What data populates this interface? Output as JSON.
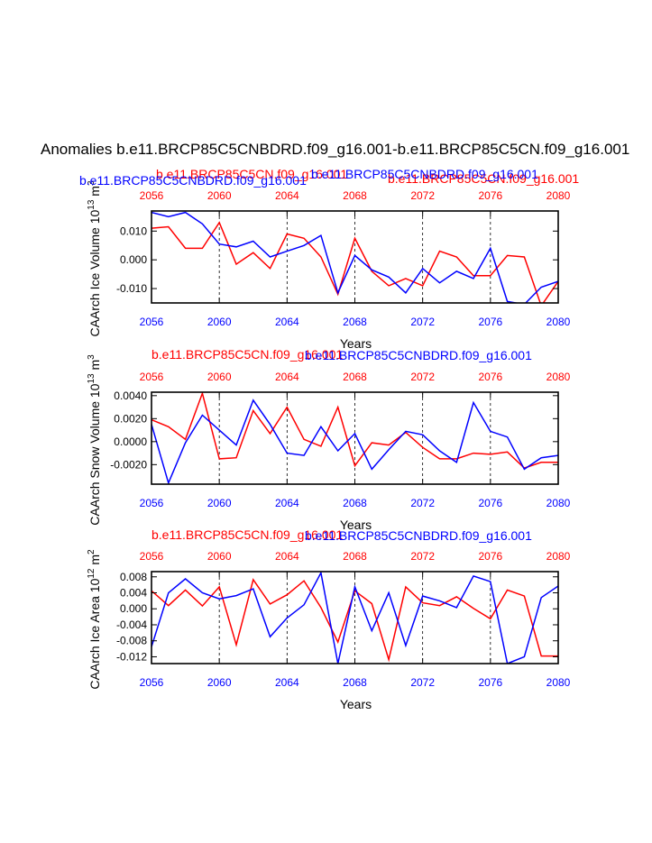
{
  "title": "Anomalies b.e11.BRCP85C5CNBDRD.f09_g16.001-b.e11.BRCP85C5CN.f09_g16.001",
  "colors": {
    "red": "#ff0000",
    "blue": "#0000ff",
    "axis": "#000000"
  },
  "chart_data": [
    {
      "type": "line",
      "ylabel": "CAArch Ice Volume 10",
      "ylabel_exp": "13",
      "ylabel_unit": " m",
      "ylabel_unit_exp": "3",
      "xlabel": "Years",
      "xlim": [
        2056,
        2080
      ],
      "ylim": [
        -0.015,
        0.017
      ],
      "yticks": [
        -0.01,
        0.0,
        0.01
      ],
      "ytick_labels": [
        "-0.010",
        "0.000",
        "0.010"
      ],
      "xticks": [
        2056,
        2060,
        2064,
        2068,
        2072,
        2076,
        2080
      ],
      "xtick_labels": [
        "2056",
        "2060",
        "2064",
        "2068",
        "2072",
        "2076",
        "2080"
      ],
      "series": [
        {
          "name": "b.e11.BRCP85C5CN.f09_g16.001",
          "color": "#ff0000",
          "x": [
            2056,
            2057,
            2058,
            2059,
            2060,
            2061,
            2062,
            2063,
            2064,
            2065,
            2066,
            2067,
            2068,
            2069,
            2070,
            2071,
            2072,
            2073,
            2074,
            2075,
            2076,
            2077,
            2078,
            2079,
            2080
          ],
          "values": [
            0.011,
            0.0115,
            0.004,
            0.004,
            0.013,
            -0.0015,
            0.0025,
            -0.003,
            0.009,
            0.0075,
            0.001,
            -0.012,
            0.0075,
            -0.004,
            -0.009,
            -0.0065,
            -0.009,
            0.003,
            0.001,
            -0.0055,
            -0.0055,
            0.0015,
            0.001,
            -0.016,
            -0.0075
          ]
        },
        {
          "name": "b.e11.BRCP85C5CNBDRD.f09_g16.001",
          "color": "#0000ff",
          "x": [
            2056,
            2057,
            2058,
            2059,
            2060,
            2061,
            2062,
            2063,
            2064,
            2065,
            2066,
            2067,
            2068,
            2069,
            2070,
            2071,
            2072,
            2073,
            2074,
            2075,
            2076,
            2077,
            2078,
            2079,
            2080
          ],
          "values": [
            0.0165,
            0.015,
            0.0165,
            0.0125,
            0.0055,
            0.0045,
            0.0065,
            0.001,
            0.003,
            0.005,
            0.0085,
            -0.0115,
            0.0015,
            -0.0035,
            -0.006,
            -0.0115,
            -0.003,
            -0.008,
            -0.004,
            -0.0065,
            0.004,
            -0.0145,
            -0.0155,
            -0.0095,
            -0.0075
          ]
        }
      ]
    },
    {
      "type": "line",
      "ylabel": "CAArch Snow Volume 10",
      "ylabel_exp": "13",
      "ylabel_unit": " m",
      "ylabel_unit_exp": "3",
      "xlabel": "Years",
      "xlim": [
        2056,
        2080
      ],
      "ylim": [
        -0.0037,
        0.0043
      ],
      "yticks": [
        -0.002,
        0.0,
        0.002,
        0.004
      ],
      "ytick_labels": [
        "-0.0020",
        "0.0000",
        "0.0020",
        "0.0040"
      ],
      "xticks": [
        2056,
        2060,
        2064,
        2068,
        2072,
        2076,
        2080
      ],
      "xtick_labels": [
        "2056",
        "2060",
        "2064",
        "2068",
        "2072",
        "2076",
        "2080"
      ],
      "series": [
        {
          "name": "b.e11.BRCP85C5CN.f09_g16.001",
          "color": "#ff0000",
          "x": [
            2056,
            2057,
            2058,
            2059,
            2060,
            2061,
            2062,
            2063,
            2064,
            2065,
            2066,
            2067,
            2068,
            2069,
            2070,
            2071,
            2072,
            2073,
            2074,
            2075,
            2076,
            2077,
            2078,
            2079,
            2080
          ],
          "values": [
            0.0019,
            0.0013,
            0.0002,
            0.0042,
            -0.0015,
            -0.0014,
            0.0027,
            0.0007,
            0.003,
            0.0002,
            -0.0004,
            0.003,
            -0.0021,
            -0.0001,
            -0.0003,
            0.0008,
            -0.0005,
            -0.0015,
            -0.0015,
            -0.001,
            -0.0011,
            -0.0009,
            -0.0023,
            -0.0018,
            -0.0018
          ]
        },
        {
          "name": "b.e11.BRCP85C5CNBDRD.f09_g16.001",
          "color": "#0000ff",
          "x": [
            2056,
            2057,
            2058,
            2059,
            2060,
            2061,
            2062,
            2063,
            2064,
            2065,
            2066,
            2067,
            2068,
            2069,
            2070,
            2071,
            2072,
            2073,
            2074,
            2075,
            2076,
            2077,
            2078,
            2079,
            2080
          ],
          "values": [
            0.0015,
            -0.0036,
            -0.0001,
            0.0023,
            0.001,
            -0.0003,
            0.0036,
            0.0015,
            -0.001,
            -0.0012,
            0.0013,
            -0.0008,
            0.0007,
            -0.0024,
            -0.0007,
            0.0009,
            0.0006,
            -0.0008,
            -0.0018,
            0.0034,
            0.0009,
            0.0004,
            -0.0024,
            -0.0014,
            -0.0012
          ]
        }
      ]
    },
    {
      "type": "line",
      "ylabel": "CAArch Ice Area 10",
      "ylabel_exp": "12",
      "ylabel_unit": " m",
      "ylabel_unit_exp": "2",
      "xlabel": "Years",
      "xlim": [
        2056,
        2080
      ],
      "ylim": [
        -0.0137,
        0.0093
      ],
      "yticks": [
        -0.012,
        -0.008,
        -0.004,
        0.0,
        0.004,
        0.008
      ],
      "ytick_labels": [
        "-0.012",
        "-0.008",
        "-0.004",
        "0.000",
        "0.004",
        "0.008"
      ],
      "xticks": [
        2056,
        2060,
        2064,
        2068,
        2072,
        2076,
        2080
      ],
      "xtick_labels": [
        "2056",
        "2060",
        "2064",
        "2068",
        "2072",
        "2076",
        "2080"
      ],
      "series": [
        {
          "name": "b.e11.BRCP85C5CN.f09_g16.001",
          "color": "#ff0000",
          "x": [
            2056,
            2057,
            2058,
            2059,
            2060,
            2061,
            2062,
            2063,
            2064,
            2065,
            2066,
            2067,
            2068,
            2069,
            2070,
            2071,
            2072,
            2073,
            2074,
            2075,
            2076,
            2077,
            2078,
            2079,
            2080
          ],
          "values": [
            0.0045,
            0.0008,
            0.0047,
            0.0007,
            0.0055,
            -0.009,
            0.0073,
            0.0012,
            0.0035,
            0.007,
            0.0003,
            -0.0083,
            0.0045,
            0.0013,
            -0.0127,
            0.0055,
            0.0015,
            0.0008,
            0.003,
            0.0001,
            -0.0025,
            0.0047,
            0.0032,
            -0.0118,
            -0.0118
          ]
        },
        {
          "name": "b.e11.BRCP85C5CNBDRD.f09_g16.001",
          "color": "#0000ff",
          "x": [
            2056,
            2057,
            2058,
            2059,
            2060,
            2061,
            2062,
            2063,
            2064,
            2065,
            2066,
            2067,
            2068,
            2069,
            2070,
            2071,
            2072,
            2073,
            2074,
            2075,
            2076,
            2077,
            2078,
            2079,
            2080
          ],
          "values": [
            -0.0095,
            0.004,
            0.0075,
            0.004,
            0.0025,
            0.0033,
            0.005,
            -0.007,
            -0.0023,
            0.001,
            0.009,
            -0.0137,
            0.0055,
            -0.0055,
            0.004,
            -0.0092,
            0.0032,
            0.002,
            0.0003,
            0.0082,
            0.0068,
            -0.0137,
            -0.012,
            0.0028,
            0.0057
          ]
        }
      ]
    }
  ]
}
